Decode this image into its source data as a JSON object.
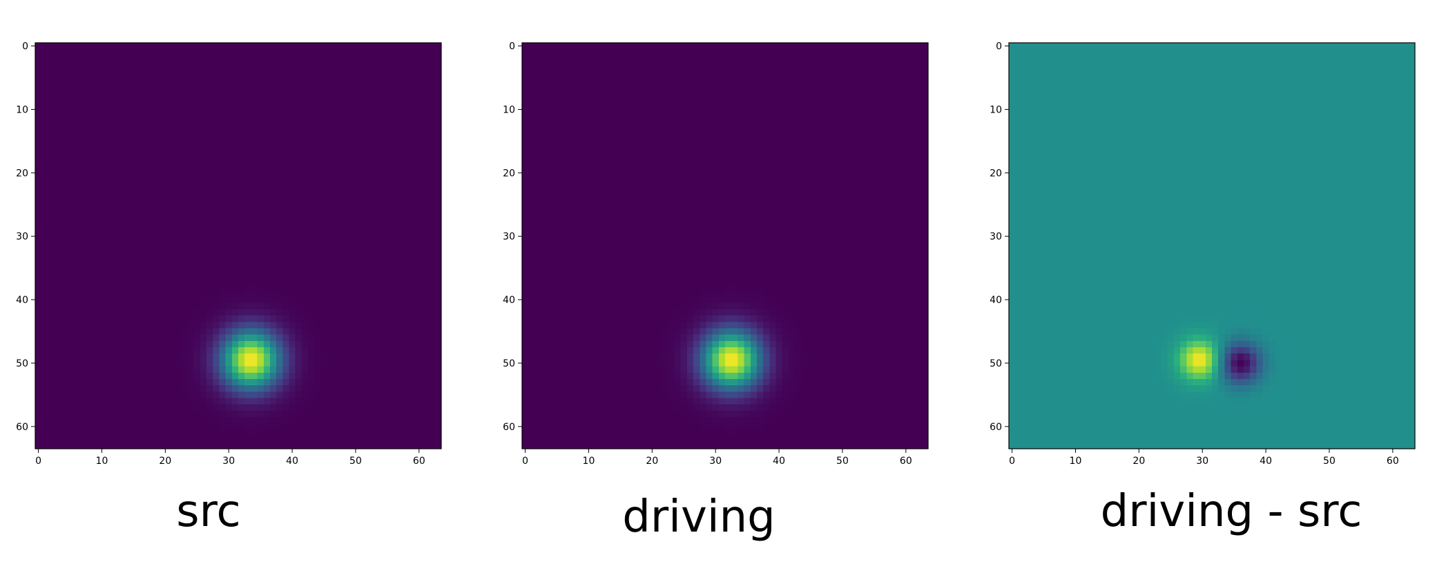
{
  "chart_data": [
    {
      "type": "heatmap",
      "caption": "src",
      "colormap": "viridis",
      "grid_size": 64,
      "xlim": [
        0,
        63
      ],
      "ylim": [
        63,
        0
      ],
      "xticks": [
        0,
        10,
        20,
        30,
        40,
        50,
        60
      ],
      "yticks": [
        0,
        10,
        20,
        30,
        40,
        50,
        60
      ],
      "grid": false,
      "blobs": [
        {
          "cx": 33.5,
          "cy": 49.5,
          "sigma": 3.2,
          "amplitude": 1.0
        }
      ],
      "vmin": 0,
      "vmax": 1
    },
    {
      "type": "heatmap",
      "caption": "driving",
      "colormap": "viridis",
      "grid_size": 64,
      "xlim": [
        0,
        63
      ],
      "ylim": [
        63,
        0
      ],
      "xticks": [
        0,
        10,
        20,
        30,
        40,
        50,
        60
      ],
      "yticks": [
        0,
        10,
        20,
        30,
        40,
        50,
        60
      ],
      "grid": false,
      "blobs": [
        {
          "cx": 32.5,
          "cy": 49.5,
          "sigma": 3.2,
          "amplitude": 1.0
        }
      ],
      "vmin": 0,
      "vmax": 1
    },
    {
      "type": "heatmap",
      "caption": "driving - src",
      "colormap": "viridis",
      "grid_size": 64,
      "xlim": [
        0,
        63
      ],
      "ylim": [
        63,
        0
      ],
      "xticks": [
        0,
        10,
        20,
        30,
        40,
        50,
        60
      ],
      "yticks": [
        0,
        10,
        20,
        30,
        40,
        50,
        60
      ],
      "grid": false,
      "blobs": [
        {
          "cx": 29.5,
          "cy": 49.5,
          "sigma": 2.2,
          "amplitude": 1.0
        },
        {
          "cx": 36.0,
          "cy": 50.0,
          "sigma": 2.2,
          "amplitude": -1.0
        }
      ],
      "vmin": -1,
      "vmax": 1
    }
  ]
}
